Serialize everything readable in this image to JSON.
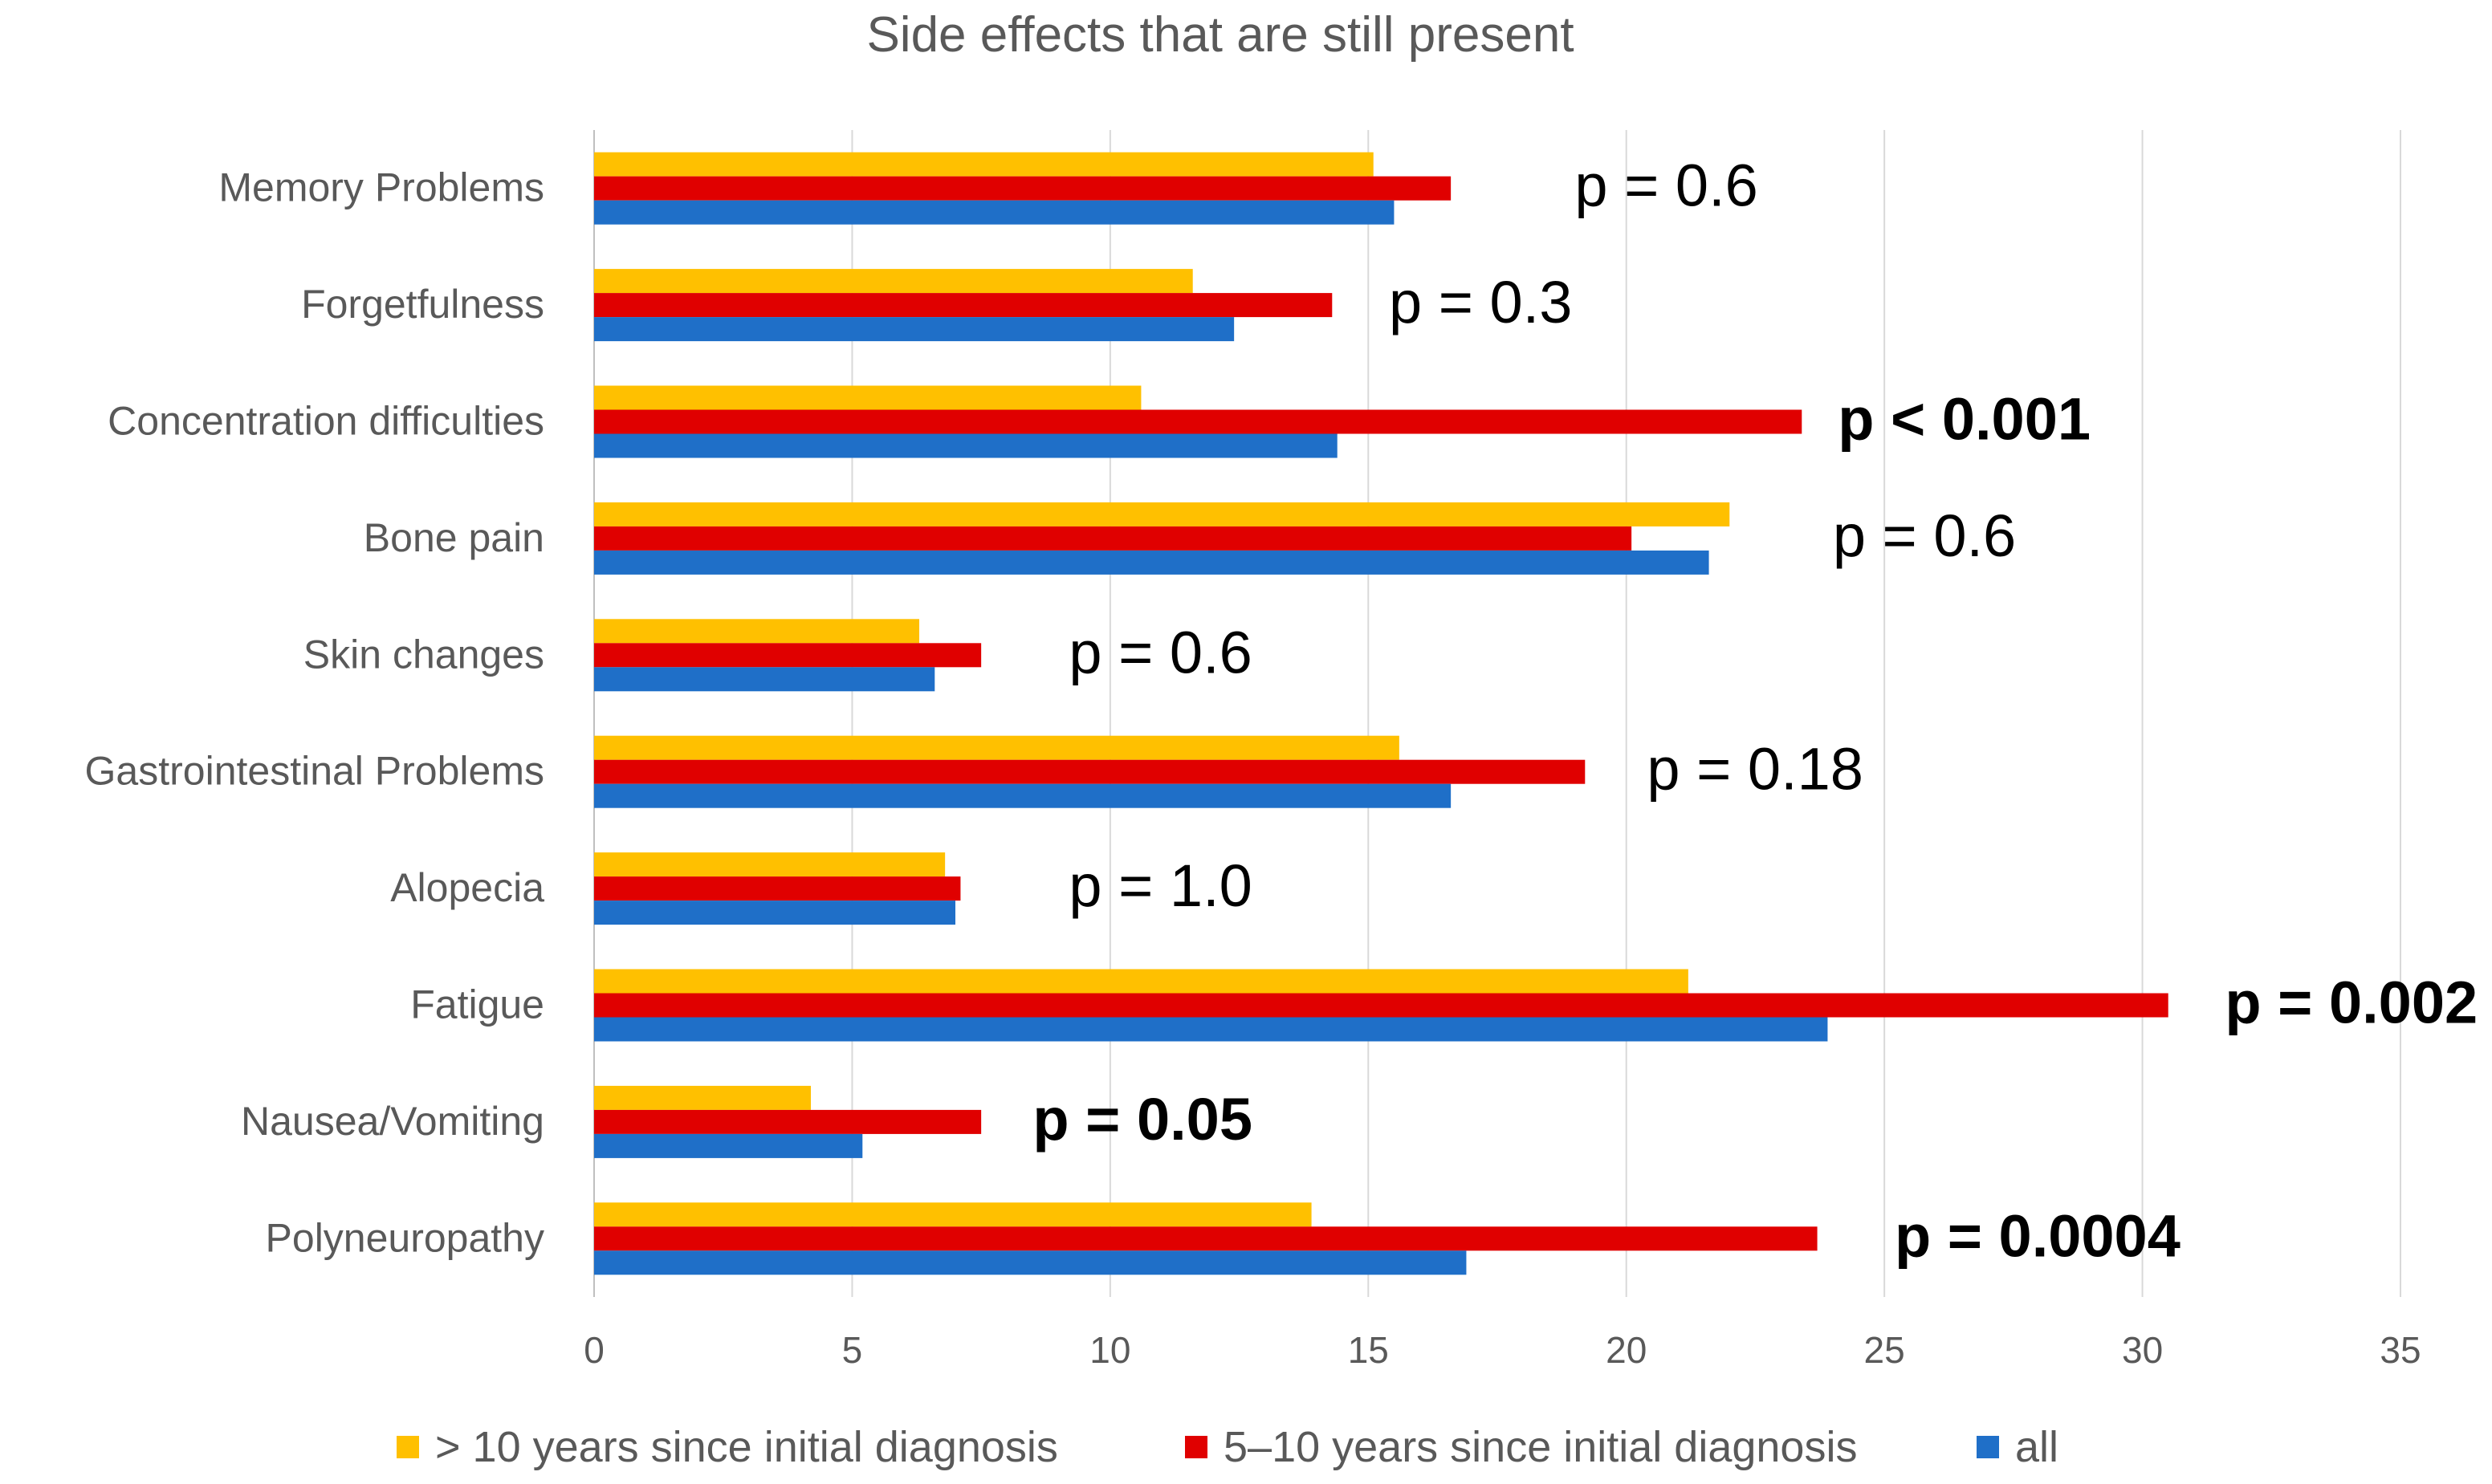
{
  "chart_data": {
    "type": "bar",
    "orientation": "horizontal",
    "title": "Side effects that are still present",
    "categories": [
      "Memory Problems",
      "Forgetfulness",
      "Concentration difficulties",
      "Bone pain",
      "Skin changes",
      "Gastrointestinal Problems",
      "Alopecia",
      "Fatigue",
      "Nausea/Vomiting",
      "Polyneuropathy"
    ],
    "series": [
      {
        "name": "> 10 years since initial diagnosis",
        "color": "#FFC000",
        "values": [
          15.1,
          11.6,
          10.6,
          22.0,
          6.3,
          15.6,
          6.8,
          21.2,
          4.2,
          13.9
        ]
      },
      {
        "name": "5–10 years since initial diagnosis",
        "color": "#E00000",
        "values": [
          16.6,
          14.3,
          23.4,
          20.1,
          7.5,
          19.2,
          7.1,
          30.5,
          7.5,
          23.7
        ]
      },
      {
        "name": "all",
        "color": "#1F6FC8",
        "values": [
          15.5,
          12.4,
          14.4,
          21.6,
          6.6,
          16.6,
          7.0,
          23.9,
          5.2,
          16.9
        ]
      }
    ],
    "annotations": [
      {
        "category": "Memory Problems",
        "text": "p = 0.6",
        "bold": false,
        "at": 19.0
      },
      {
        "category": "Forgetfulness",
        "text": "p = 0.3",
        "bold": false,
        "at": 15.4
      },
      {
        "category": "Concentration difficulties",
        "text": "p < 0.001",
        "bold": true,
        "at": 24.1
      },
      {
        "category": "Bone pain",
        "text": "p = 0.6",
        "bold": false,
        "at": 24.0
      },
      {
        "category": "Skin changes",
        "text": "p = 0.6",
        "bold": false,
        "at": 9.2
      },
      {
        "category": "Gastrointestinal Problems",
        "text": "p = 0.18",
        "bold": false,
        "at": 20.4
      },
      {
        "category": "Alopecia",
        "text": "p = 1.0",
        "bold": false,
        "at": 9.2
      },
      {
        "category": "Fatigue",
        "text": "p = 0.002",
        "bold": true,
        "at": 31.6
      },
      {
        "category": "Nausea/Vomiting",
        "text": "p = 0.05",
        "bold": true,
        "at": 8.5
      },
      {
        "category": "Polyneuropathy",
        "text": "p = 0.0004",
        "bold": true,
        "at": 25.2
      }
    ],
    "xlim": [
      0,
      35
    ],
    "xticks": [
      0,
      5,
      10,
      15,
      20,
      25,
      30,
      35
    ],
    "xtick_labels": [
      "0",
      "5",
      "10",
      "15",
      "20",
      "25",
      "30",
      "35"
    ],
    "xlabel": "",
    "ylabel": "",
    "grid": "vertical",
    "legend_position": "bottom"
  }
}
